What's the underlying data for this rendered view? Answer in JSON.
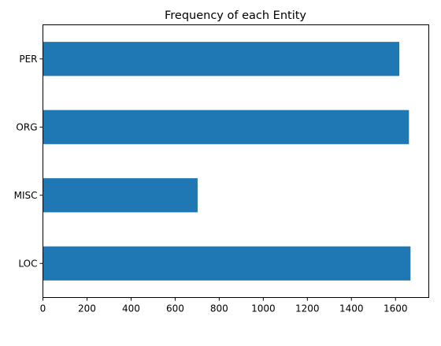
{
  "chart_data": {
    "type": "bar",
    "orientation": "horizontal",
    "title": "Frequency of each Entity",
    "xlabel": "",
    "ylabel": "",
    "categories": [
      "LOC",
      "MISC",
      "ORG",
      "PER"
    ],
    "values": [
      1668,
      702,
      1661,
      1617
    ],
    "xlim": [
      0,
      1751
    ],
    "xticks": [
      0,
      200,
      400,
      600,
      800,
      1000,
      1200,
      1400,
      1600
    ],
    "bar_color": "#1f77b4",
    "grid": false,
    "legend": "none"
  }
}
